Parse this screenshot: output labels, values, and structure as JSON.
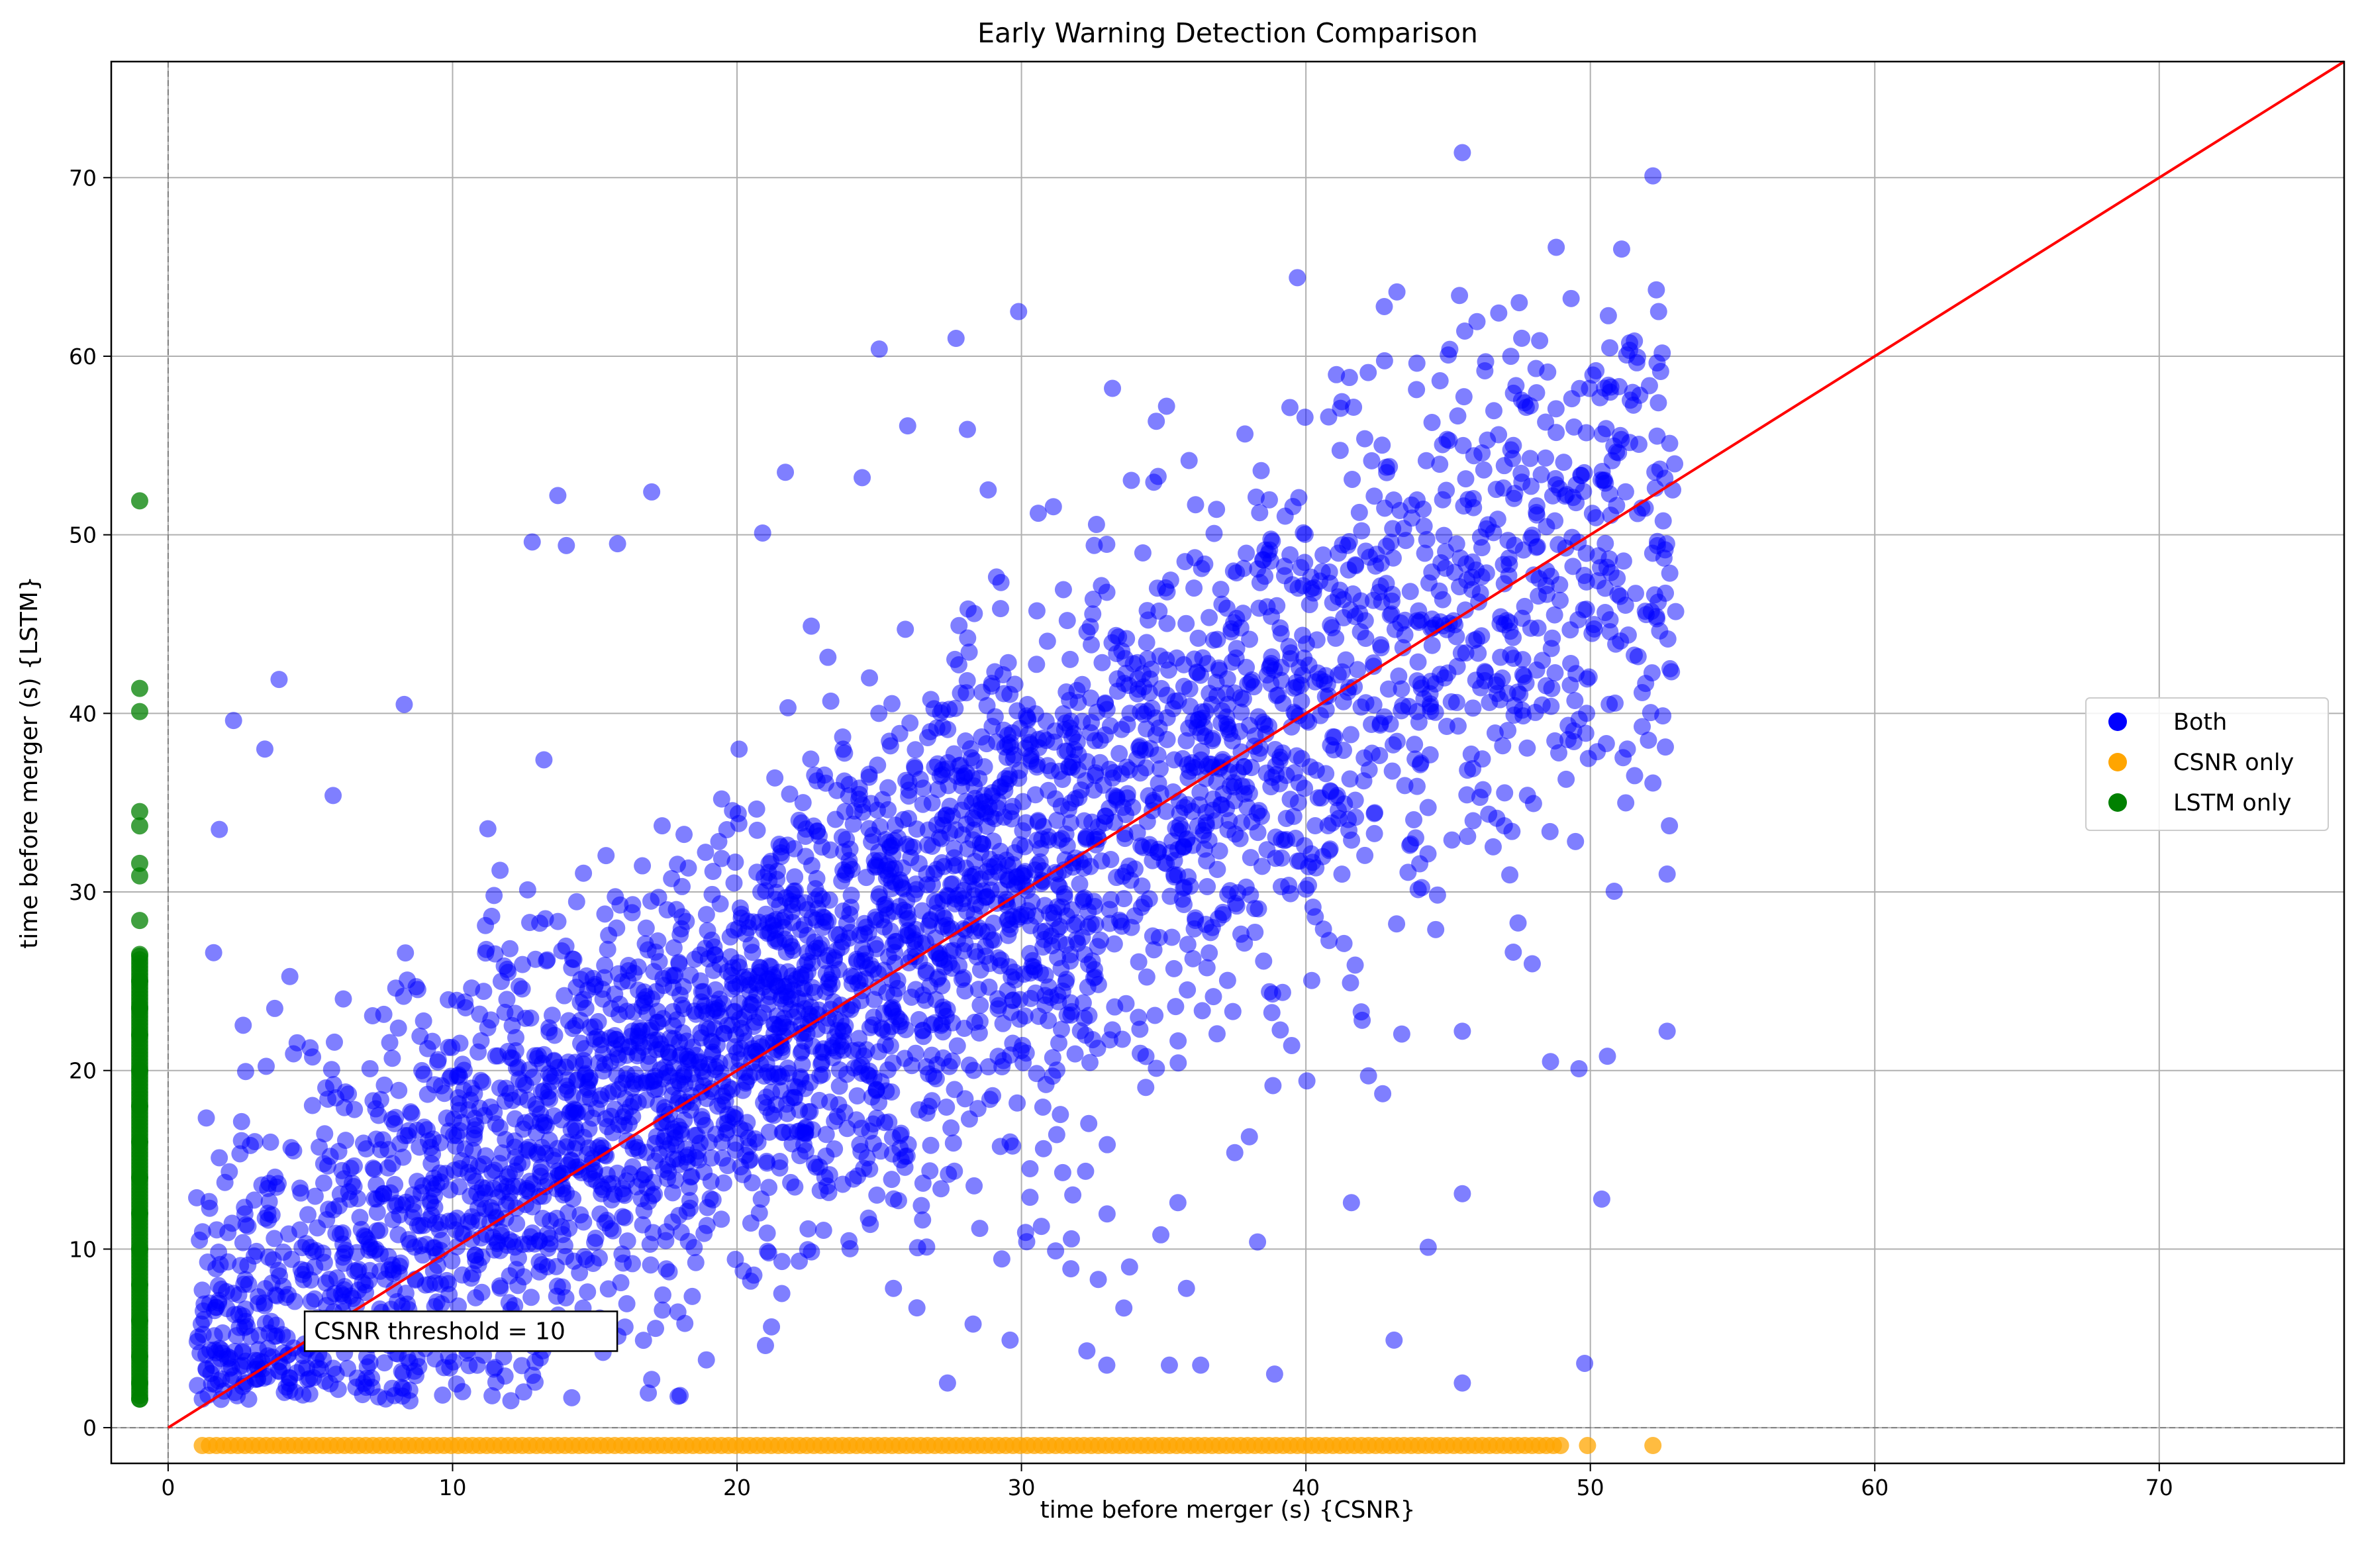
{
  "chart_data": {
    "type": "scatter",
    "title": "Early Warning Detection Comparison",
    "xlabel": "time before merger (s) {CSNR}",
    "ylabel": "time before merger (s) {LSTM}",
    "xlim": [
      -2,
      76.5
    ],
    "ylim": [
      -2,
      76.5
    ],
    "xticks": [
      0,
      10,
      20,
      30,
      40,
      50,
      60,
      70
    ],
    "yticks": [
      0,
      10,
      20,
      30,
      40,
      50,
      60,
      70
    ],
    "grid": true,
    "legend_position": "center-right",
    "reference_line": {
      "from": [
        0,
        0
      ],
      "to": [
        76.5,
        76.5
      ],
      "color": "#ff0000"
    },
    "dashed_lines": {
      "x": 0,
      "y": 0,
      "color": "#808080"
    },
    "annotation": {
      "text": "CSNR threshold = 10",
      "x": 4.8,
      "y": 5.4
    },
    "series": [
      {
        "name": "Both",
        "color": "#0000ff",
        "description_points": [
          [
            45.5,
            71.4
          ],
          [
            52.2,
            70.1
          ],
          [
            39.7,
            64.4
          ],
          [
            48.8,
            66.1
          ],
          [
            51.1,
            66.0
          ],
          [
            29.9,
            62.5
          ],
          [
            25.0,
            60.4
          ],
          [
            43.2,
            63.6
          ],
          [
            45.4,
            63.4
          ],
          [
            47.5,
            63.0
          ],
          [
            52.4,
            62.5
          ],
          [
            27.7,
            61.0
          ],
          [
            33.2,
            58.2
          ],
          [
            35.1,
            57.2
          ],
          [
            26.0,
            56.1
          ],
          [
            28.1,
            55.9
          ],
          [
            40.8,
            56.6
          ],
          [
            21.7,
            53.5
          ],
          [
            24.4,
            53.2
          ],
          [
            13.7,
            52.2
          ],
          [
            17.0,
            52.4
          ],
          [
            12.8,
            49.6
          ],
          [
            14.0,
            49.4
          ],
          [
            15.8,
            49.5
          ],
          [
            20.9,
            50.1
          ],
          [
            3.9,
            41.9
          ],
          [
            2.3,
            39.6
          ],
          [
            8.3,
            40.5
          ],
          [
            1.8,
            33.5
          ],
          [
            5.8,
            35.4
          ],
          [
            1.6,
            26.6
          ],
          [
            3.4,
            38.0
          ],
          [
            53.0,
            45.7
          ],
          [
            52.8,
            42.5
          ],
          [
            52.7,
            31.0
          ],
          [
            52.7,
            22.2
          ],
          [
            52.2,
            36.1
          ],
          [
            51.3,
            38.0
          ],
          [
            50.6,
            20.8
          ],
          [
            49.8,
            3.6
          ],
          [
            50.4,
            12.8
          ],
          [
            48.6,
            20.5
          ],
          [
            49.6,
            20.1
          ],
          [
            45.5,
            22.2
          ],
          [
            45.5,
            2.5
          ],
          [
            45.5,
            13.1
          ],
          [
            44.3,
            10.1
          ],
          [
            43.1,
            4.9
          ],
          [
            38.9,
            3.0
          ],
          [
            38.3,
            10.4
          ],
          [
            41.6,
            12.6
          ],
          [
            42.7,
            18.7
          ],
          [
            42.2,
            19.7
          ],
          [
            39.5,
            21.4
          ],
          [
            37.5,
            15.4
          ],
          [
            35.5,
            12.6
          ],
          [
            34.9,
            10.8
          ],
          [
            35.8,
            7.8
          ],
          [
            33.8,
            9.0
          ],
          [
            32.7,
            8.3
          ],
          [
            32.3,
            4.3
          ],
          [
            33.0,
            3.5
          ],
          [
            35.2,
            3.5
          ],
          [
            36.3,
            3.5
          ],
          [
            33.6,
            6.7
          ],
          [
            31.2,
            9.9
          ],
          [
            30.3,
            12.9
          ],
          [
            30.3,
            14.5
          ],
          [
            29.6,
            16.0
          ],
          [
            28.3,
            5.8
          ],
          [
            27.4,
            2.5
          ],
          [
            29.6,
            4.9
          ],
          [
            25.5,
            7.8
          ],
          [
            21.0,
            4.6
          ],
          [
            17.0,
            2.7
          ],
          [
            18.0,
            1.8
          ],
          [
            1.2,
            1.6
          ],
          [
            1.1,
            10.5
          ],
          [
            1.2,
            7.7
          ],
          [
            2.3,
            2.9
          ],
          [
            2.9,
            5.1
          ],
          [
            12.5,
            2.0
          ],
          [
            8.5,
            1.5
          ],
          [
            7.0,
            3.4
          ]
        ]
      },
      {
        "name": "CSNR only",
        "color": "#ffa500",
        "x_range": [
          1.2,
          52.2
        ],
        "y": -1.0
      },
      {
        "name": "LSTM only",
        "color": "#008000",
        "x": -1.0,
        "description_points": [
          [
            -1.0,
            51.9
          ],
          [
            -1.0,
            41.4
          ],
          [
            -1.0,
            40.1
          ],
          [
            -1.0,
            34.5
          ],
          [
            -1.0,
            33.7
          ],
          [
            -1.0,
            31.6
          ],
          [
            -1.0,
            30.9
          ],
          [
            -1.0,
            28.4
          ],
          [
            -1.0,
            26.5
          ],
          [
            -1.0,
            25.0
          ],
          [
            -1.0,
            23.5
          ],
          [
            -1.0,
            22.0
          ],
          [
            -1.0,
            20.0
          ],
          [
            -1.0,
            18.0
          ],
          [
            -1.0,
            16.0
          ],
          [
            -1.0,
            14.0
          ],
          [
            -1.0,
            12.0
          ],
          [
            -1.0,
            10.0
          ],
          [
            -1.0,
            8.0
          ],
          [
            -1.0,
            6.0
          ],
          [
            -1.0,
            4.0
          ],
          [
            -1.0,
            2.5
          ],
          [
            -1.0,
            1.6
          ]
        ]
      }
    ]
  }
}
